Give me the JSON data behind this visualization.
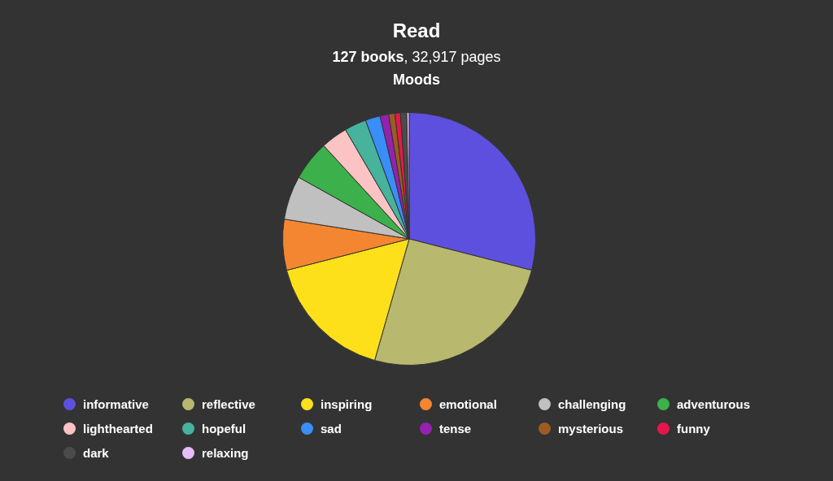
{
  "chart_data": {
    "type": "pie",
    "title": "Read",
    "subtitle": "127 books, 32,917 pages",
    "annotations": [
      "Moods"
    ],
    "categories": [
      "informative",
      "reflective",
      "inspiring",
      "emotional",
      "challenging",
      "adventurous",
      "lighthearted",
      "hopeful",
      "sad",
      "tense",
      "mysterious",
      "funny",
      "dark",
      "relaxing"
    ],
    "values": [
      29.0,
      25.4,
      16.6,
      6.5,
      5.6,
      5.1,
      3.4,
      2.8,
      1.9,
      1.1,
      0.8,
      0.7,
      0.8,
      0.3
    ],
    "colors": [
      "#5e50de",
      "#b8b86e",
      "#fde01a",
      "#f58631",
      "#c0c0c0",
      "#3cb04a",
      "#fbc3c3",
      "#47b39c",
      "#3b8df8",
      "#9621b0",
      "#9b5c22",
      "#e8174b",
      "#4b4b4b",
      "#e6bdfa"
    ],
    "legend": "bottom"
  }
}
